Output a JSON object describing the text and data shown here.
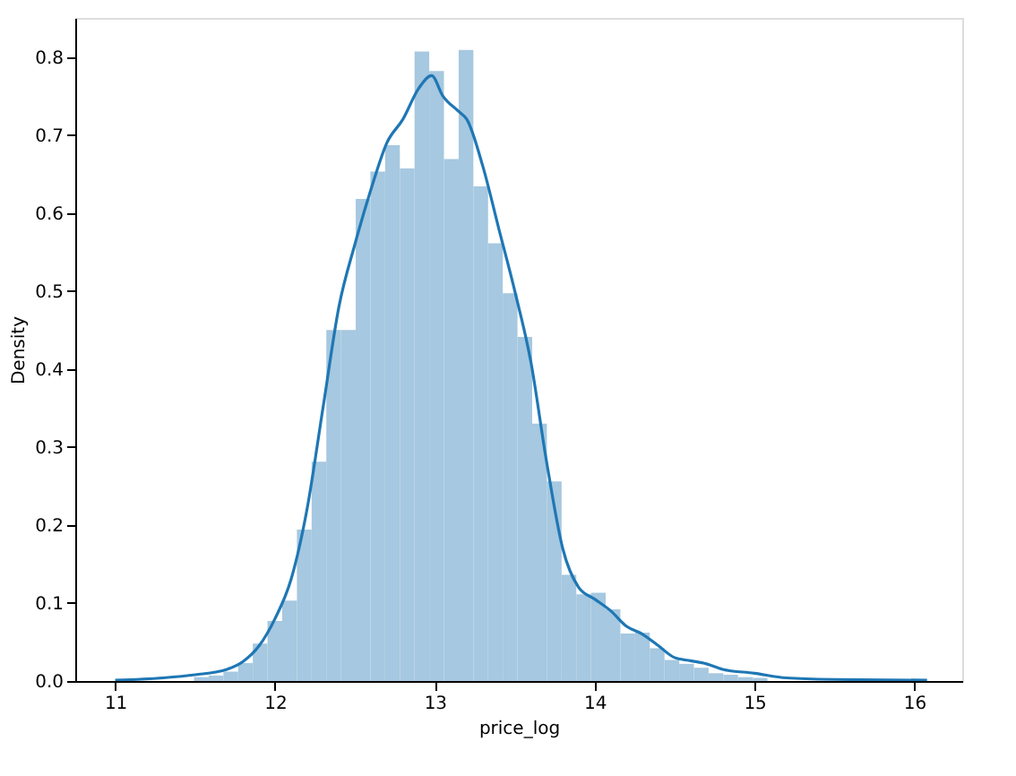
{
  "chart_data": {
    "type": "histogram",
    "xlabel": "price_log",
    "ylabel": "Density",
    "bins": [
      11.493,
      11.585,
      11.677,
      11.769,
      11.861,
      11.953,
      12.045,
      12.137,
      12.229,
      12.321,
      12.413,
      12.505,
      12.597,
      12.689,
      12.781,
      12.873,
      12.965,
      13.057,
      13.149,
      13.241,
      13.333,
      13.425,
      13.517,
      13.609,
      13.701,
      13.793,
      13.885,
      13.977,
      14.069,
      14.161,
      14.253,
      14.345,
      14.437,
      14.529,
      14.621,
      14.713,
      14.805,
      14.897,
      14.989,
      15.081,
      15.173
    ],
    "values": [
      0.005,
      0.007,
      0.012,
      0.023,
      0.048,
      0.077,
      0.103,
      0.194,
      0.281,
      0.45,
      0.45,
      0.618,
      0.653,
      0.687,
      0.657,
      0.807,
      0.782,
      0.669,
      0.809,
      0.634,
      0.561,
      0.497,
      0.441,
      0.33,
      0.256,
      0.136,
      0.111,
      0.113,
      0.092,
      0.061,
      0.062,
      0.042,
      0.027,
      0.022,
      0.017,
      0.01,
      0.008,
      0.005,
      0.004,
      null
    ],
    "color": "#a6c8e0",
    "series": [
      {
        "type": "line",
        "color": "#1f77b4",
        "x": [
          11.0,
          11.3,
          11.5,
          11.7,
          11.8,
          11.9,
          12.0,
          12.1,
          12.2,
          12.3,
          12.4,
          12.5,
          12.6,
          12.7,
          12.8,
          12.9,
          12.98,
          13.05,
          13.15,
          13.2,
          13.3,
          13.4,
          13.5,
          13.6,
          13.7,
          13.8,
          13.9,
          14.0,
          14.1,
          14.2,
          14.3,
          14.4,
          14.5,
          14.6,
          14.7,
          14.8,
          15.0,
          15.2,
          15.5,
          16.08
        ],
        "values": [
          0.001,
          0.004,
          0.008,
          0.015,
          0.025,
          0.045,
          0.08,
          0.13,
          0.22,
          0.35,
          0.48,
          0.56,
          0.63,
          0.69,
          0.72,
          0.76,
          0.776,
          0.75,
          0.73,
          0.72,
          0.66,
          0.58,
          0.5,
          0.41,
          0.28,
          0.17,
          0.12,
          0.105,
          0.09,
          0.07,
          0.06,
          0.045,
          0.03,
          0.026,
          0.022,
          0.015,
          0.01,
          0.004,
          0.002,
          0.001
        ]
      }
    ],
    "xlim": [
      10.75,
      16.3
    ],
    "ylim": [
      0,
      0.85
    ],
    "xticks": [
      11,
      12,
      13,
      14,
      15,
      16
    ],
    "yticks": [
      {
        "value": 0,
        "label": "0.0"
      },
      0.1,
      0.2,
      0.3,
      0.4,
      0.5,
      0.6,
      0.7,
      0.8
    ],
    "grid": false
  }
}
